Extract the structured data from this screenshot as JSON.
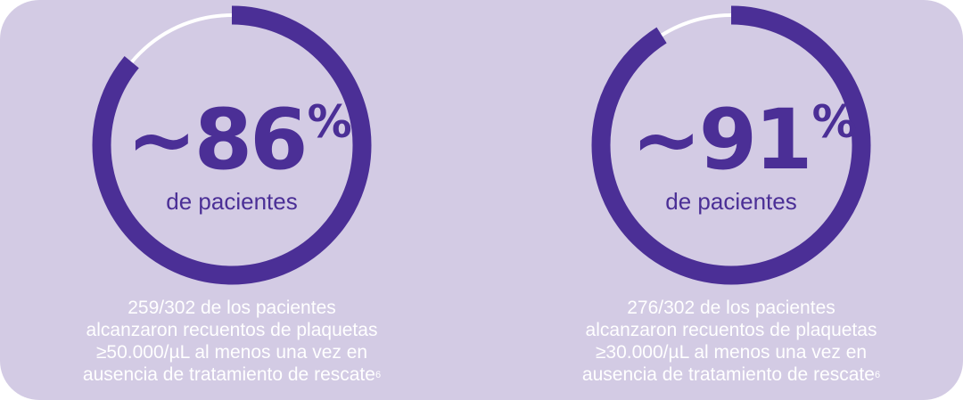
{
  "colors": {
    "background": "#d3cbe4",
    "accent": "#4b2f96",
    "thin_ring": "#ffffff",
    "caption_text": "#ffffff"
  },
  "stats": [
    {
      "value": "~86",
      "percent_sign": "%",
      "subtitle": "de pacientes",
      "fraction": 0.86,
      "caption_lines": [
        "259/302 de los pacientes",
        "alcanzaron recuentos de plaquetas",
        "≥50.000/µL al menos una vez en",
        "ausencia de tratamiento de rescate"
      ],
      "footnote": "6"
    },
    {
      "value": "~91",
      "percent_sign": "%",
      "subtitle": "de pacientes",
      "fraction": 0.91,
      "caption_lines": [
        "276/302 de los pacientes",
        "alcanzaron recuentos de plaquetas",
        "≥30.000/µL al menos una vez en",
        "ausencia de tratamiento de rescate"
      ],
      "footnote": "6"
    }
  ]
}
